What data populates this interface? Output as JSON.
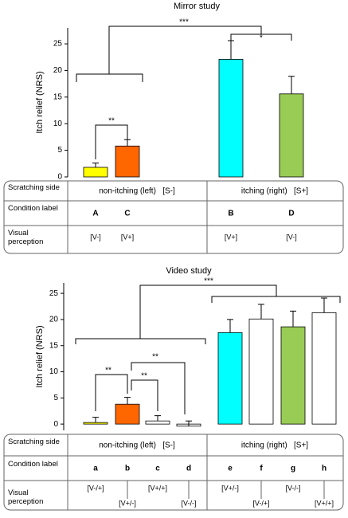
{
  "chart_data": [
    {
      "type": "bar",
      "title": "Mirror study",
      "y_label": "Itch relief (NRS)",
      "categories": [
        "A",
        "C",
        "B",
        "D"
      ],
      "values": [
        1.8,
        5.8,
        22.1,
        15.6
      ],
      "errors": [
        0.8,
        1.2,
        3.5,
        3.3
      ],
      "colors": [
        "#ffff00",
        "#ff6600",
        "#00ffff",
        "#99cc55"
      ],
      "ylim": [
        0,
        28
      ],
      "yticks": [
        0,
        5,
        10,
        15,
        20,
        25
      ],
      "significance": [
        "**",
        "*",
        "***"
      ],
      "row_labels": [
        "Scratching side",
        "Condition label",
        "Visual perception"
      ],
      "sides": [
        "non-itching (left)   [S-]",
        "itching (right)   [S+]"
      ],
      "visual": [
        "[V-]",
        "[V+]",
        "[V+]",
        "[V-]"
      ]
    },
    {
      "type": "bar",
      "title": "Video study",
      "y_label": "Itch relief (NRS)",
      "categories": [
        "a",
        "b",
        "c",
        "d",
        "e",
        "f",
        "g",
        "h"
      ],
      "values": [
        0.3,
        3.8,
        0.6,
        -0.4,
        17.5,
        20.1,
        18.6,
        21.3
      ],
      "errors": [
        1.0,
        1.3,
        1.0,
        1.0,
        2.5,
        2.8,
        3.0,
        2.8
      ],
      "colors": [
        "#ffff00",
        "#ff6600",
        "#ffffff",
        "#ffffff",
        "#00ffff",
        "#ffffff",
        "#99cc55",
        "#ffffff"
      ],
      "ylim": [
        -1.2,
        27
      ],
      "yticks": [
        0,
        5,
        10,
        15,
        20,
        25
      ],
      "significance": [
        "**",
        "**",
        "**",
        "***"
      ],
      "row_labels": [
        "Scratching side",
        "Condition label",
        "Visual perception"
      ],
      "sides": [
        "non-itching (left)   [S-]",
        "itching (right)   [S+]"
      ],
      "visual": [
        "[V-/+]",
        "[V+/-]",
        "[V+/+]",
        "[V-/-]",
        "[V+/-]",
        "[V-/+]",
        "[V-/-]",
        "[V+/+]"
      ]
    }
  ]
}
